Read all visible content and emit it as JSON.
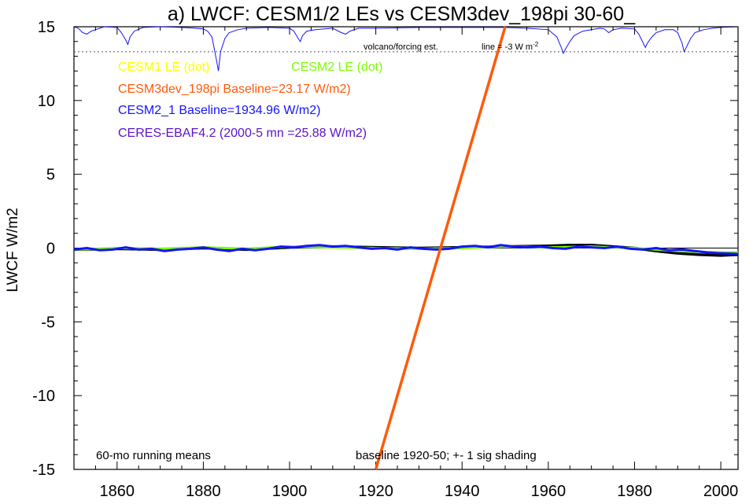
{
  "chart_data": {
    "type": "line",
    "title": "a) LWCF: CESM1/2 LEs vs CESM3dev_198pi 30-60_",
    "xlabel": "",
    "ylabel": "LWCF W/m2",
    "xlim": [
      1850,
      2004
    ],
    "ylim": [
      -15,
      15
    ],
    "x_ticks": [
      1860,
      1880,
      1900,
      1920,
      1940,
      1960,
      1980,
      2000
    ],
    "y_ticks": [
      15,
      10,
      5,
      0,
      -5,
      -10,
      -15
    ],
    "grid": false,
    "legend": [
      {
        "label": "CESM1 LE (dot)",
        "color": "#ffff00"
      },
      {
        "label": "CESM2 LE (dot)",
        "color": "#7cfc00"
      },
      {
        "label": "CESM3dev_198pi Baseline=23.17 W/m2)",
        "color": "#ff5a0a"
      },
      {
        "label": "CESM2_1 Baseline=1934.96 W/m2)",
        "color": "#1414ff"
      },
      {
        "label": "CERES-EBAF4.2 (2000-5 mn =25.88 W/m2)",
        "color": "#5a14c8"
      }
    ],
    "annotations": {
      "bottom_left": "60-mo running means",
      "bottom_center": "baseline 1920-50; +- 1 sig shading",
      "volcano": "volcano/forcing est.",
      "volcano_line_prefix": "line = -3 W m",
      "volcano_line_sup": "-2",
      "volcano_line_y": 13.3
    },
    "series": [
      {
        "name": "CESM3dev_198pi",
        "color": "#ff5a0a",
        "points": [
          [
            1920.0,
            -15.0
          ],
          [
            1950.0,
            15.0
          ]
        ]
      },
      {
        "color": "#000000",
        "points": [
          [
            1850,
            -0.1
          ],
          [
            1860,
            -0.05
          ],
          [
            1870,
            -0.1
          ],
          [
            1880,
            0.0
          ],
          [
            1890,
            -0.1
          ],
          [
            1900,
            0.05
          ],
          [
            1910,
            0.1
          ],
          [
            1920,
            0.05
          ],
          [
            1930,
            0.0
          ],
          [
            1940,
            0.05
          ],
          [
            1950,
            0.1
          ],
          [
            1960,
            0.15
          ],
          [
            1965,
            0.2
          ],
          [
            1970,
            0.2
          ],
          [
            1975,
            0.1
          ],
          [
            1980,
            0.0
          ],
          [
            1985,
            -0.2
          ],
          [
            1990,
            -0.35
          ],
          [
            1995,
            -0.45
          ],
          [
            2000,
            -0.5
          ],
          [
            2004,
            -0.45
          ]
        ]
      },
      {
        "color": "#7cfc00",
        "points": [
          [
            1850,
            -0.1
          ],
          [
            1860,
            0.0
          ],
          [
            1870,
            -0.05
          ],
          [
            1880,
            0.05
          ],
          [
            1890,
            -0.05
          ],
          [
            1900,
            0.1
          ],
          [
            1910,
            0.05
          ],
          [
            1920,
            0.0
          ],
          [
            1930,
            -0.05
          ],
          [
            1940,
            0.0
          ],
          [
            1950,
            0.1
          ],
          [
            1960,
            0.05
          ],
          [
            1970,
            0.1
          ],
          [
            1980,
            0.0
          ],
          [
            1985,
            -0.1
          ],
          [
            1990,
            -0.2
          ],
          [
            2000,
            -0.3
          ],
          [
            2004,
            -0.3
          ]
        ]
      },
      {
        "name": "CESM2_1",
        "color": "#1414ff",
        "points": [
          [
            1850,
            -0.1
          ],
          [
            1853,
            0.0
          ],
          [
            1856,
            -0.15
          ],
          [
            1859,
            -0.1
          ],
          [
            1862,
            0.05
          ],
          [
            1865,
            -0.1
          ],
          [
            1868,
            -0.05
          ],
          [
            1871,
            -0.2
          ],
          [
            1874,
            -0.1
          ],
          [
            1877,
            -0.05
          ],
          [
            1880,
            0.05
          ],
          [
            1883,
            -0.1
          ],
          [
            1886,
            -0.2
          ],
          [
            1889,
            -0.05
          ],
          [
            1892,
            -0.15
          ],
          [
            1895,
            -0.05
          ],
          [
            1898,
            0.1
          ],
          [
            1901,
            0.05
          ],
          [
            1904,
            0.15
          ],
          [
            1907,
            0.2
          ],
          [
            1910,
            0.1
          ],
          [
            1913,
            0.15
          ],
          [
            1916,
            0.05
          ],
          [
            1919,
            -0.05
          ],
          [
            1922,
            0.0
          ],
          [
            1925,
            -0.1
          ],
          [
            1928,
            0.05
          ],
          [
            1931,
            -0.05
          ],
          [
            1934,
            -0.1
          ],
          [
            1937,
            -0.05
          ],
          [
            1940,
            0.1
          ],
          [
            1943,
            0.15
          ],
          [
            1946,
            0.05
          ],
          [
            1949,
            0.2
          ],
          [
            1952,
            0.1
          ],
          [
            1955,
            0.05
          ],
          [
            1958,
            0.1
          ],
          [
            1961,
            0.0
          ],
          [
            1964,
            -0.05
          ],
          [
            1967,
            0.1
          ],
          [
            1970,
            0.05
          ],
          [
            1973,
            0.0
          ],
          [
            1976,
            0.1
          ],
          [
            1979,
            -0.05
          ],
          [
            1982,
            -0.1
          ],
          [
            1985,
            0.0
          ],
          [
            1988,
            -0.15
          ],
          [
            1991,
            -0.1
          ],
          [
            1994,
            -0.2
          ],
          [
            1997,
            -0.3
          ],
          [
            2000,
            -0.35
          ],
          [
            2004,
            -0.4
          ]
        ]
      }
    ],
    "volcano_forcing_trace": {
      "name": "volcano/forcing est.",
      "color": "#1414ff",
      "points": [
        [
          1850,
          15.0
        ],
        [
          1851,
          14.9
        ],
        [
          1852,
          14.6
        ],
        [
          1853,
          14.5
        ],
        [
          1854,
          14.7
        ],
        [
          1855,
          14.8
        ],
        [
          1856,
          14.9
        ],
        [
          1857,
          15.0
        ],
        [
          1860,
          14.95
        ],
        [
          1861,
          14.6
        ],
        [
          1862,
          14.1
        ],
        [
          1862.5,
          13.8
        ],
        [
          1863,
          14.3
        ],
        [
          1864,
          14.7
        ],
        [
          1866,
          14.95
        ],
        [
          1870,
          15.0
        ],
        [
          1875,
          14.95
        ],
        [
          1878,
          14.9
        ],
        [
          1880,
          14.85
        ],
        [
          1881,
          14.7
        ],
        [
          1882,
          14.3
        ],
        [
          1883,
          12.8
        ],
        [
          1883.5,
          12.0
        ],
        [
          1884,
          13.3
        ],
        [
          1885,
          14.2
        ],
        [
          1886,
          14.6
        ],
        [
          1888,
          14.8
        ],
        [
          1890,
          14.9
        ],
        [
          1895,
          14.95
        ],
        [
          1900,
          14.9
        ],
        [
          1901,
          14.7
        ],
        [
          1902,
          14.2
        ],
        [
          1902.5,
          14.0
        ],
        [
          1903,
          14.4
        ],
        [
          1904,
          14.7
        ],
        [
          1906,
          14.8
        ],
        [
          1910,
          14.9
        ],
        [
          1912,
          14.6
        ],
        [
          1913,
          14.5
        ],
        [
          1914,
          14.7
        ],
        [
          1916,
          14.9
        ],
        [
          1920,
          14.9
        ],
        [
          1930,
          14.95
        ],
        [
          1940,
          14.95
        ],
        [
          1950,
          14.95
        ],
        [
          1955,
          14.9
        ],
        [
          1960,
          14.8
        ],
        [
          1962,
          14.3
        ],
        [
          1963,
          13.6
        ],
        [
          1963.5,
          13.2
        ],
        [
          1964,
          13.5
        ],
        [
          1965,
          14.0
        ],
        [
          1966,
          14.4
        ],
        [
          1968,
          14.7
        ],
        [
          1970,
          14.8
        ],
        [
          1972,
          14.9
        ],
        [
          1973,
          14.85
        ],
        [
          1974,
          14.6
        ],
        [
          1975,
          14.8
        ],
        [
          1977,
          14.9
        ],
        [
          1980,
          14.85
        ],
        [
          1981,
          14.5
        ],
        [
          1982,
          13.9
        ],
        [
          1982.5,
          13.6
        ],
        [
          1983,
          13.9
        ],
        [
          1984,
          14.3
        ],
        [
          1985,
          14.6
        ],
        [
          1987,
          14.8
        ],
        [
          1989,
          14.8
        ],
        [
          1990,
          14.6
        ],
        [
          1991,
          13.9
        ],
        [
          1991.5,
          13.3
        ],
        [
          1992,
          13.6
        ],
        [
          1993,
          14.2
        ],
        [
          1994,
          14.6
        ],
        [
          1996,
          14.8
        ],
        [
          1998,
          14.9
        ],
        [
          2000,
          14.95
        ],
        [
          2004,
          15.0
        ]
      ]
    }
  }
}
